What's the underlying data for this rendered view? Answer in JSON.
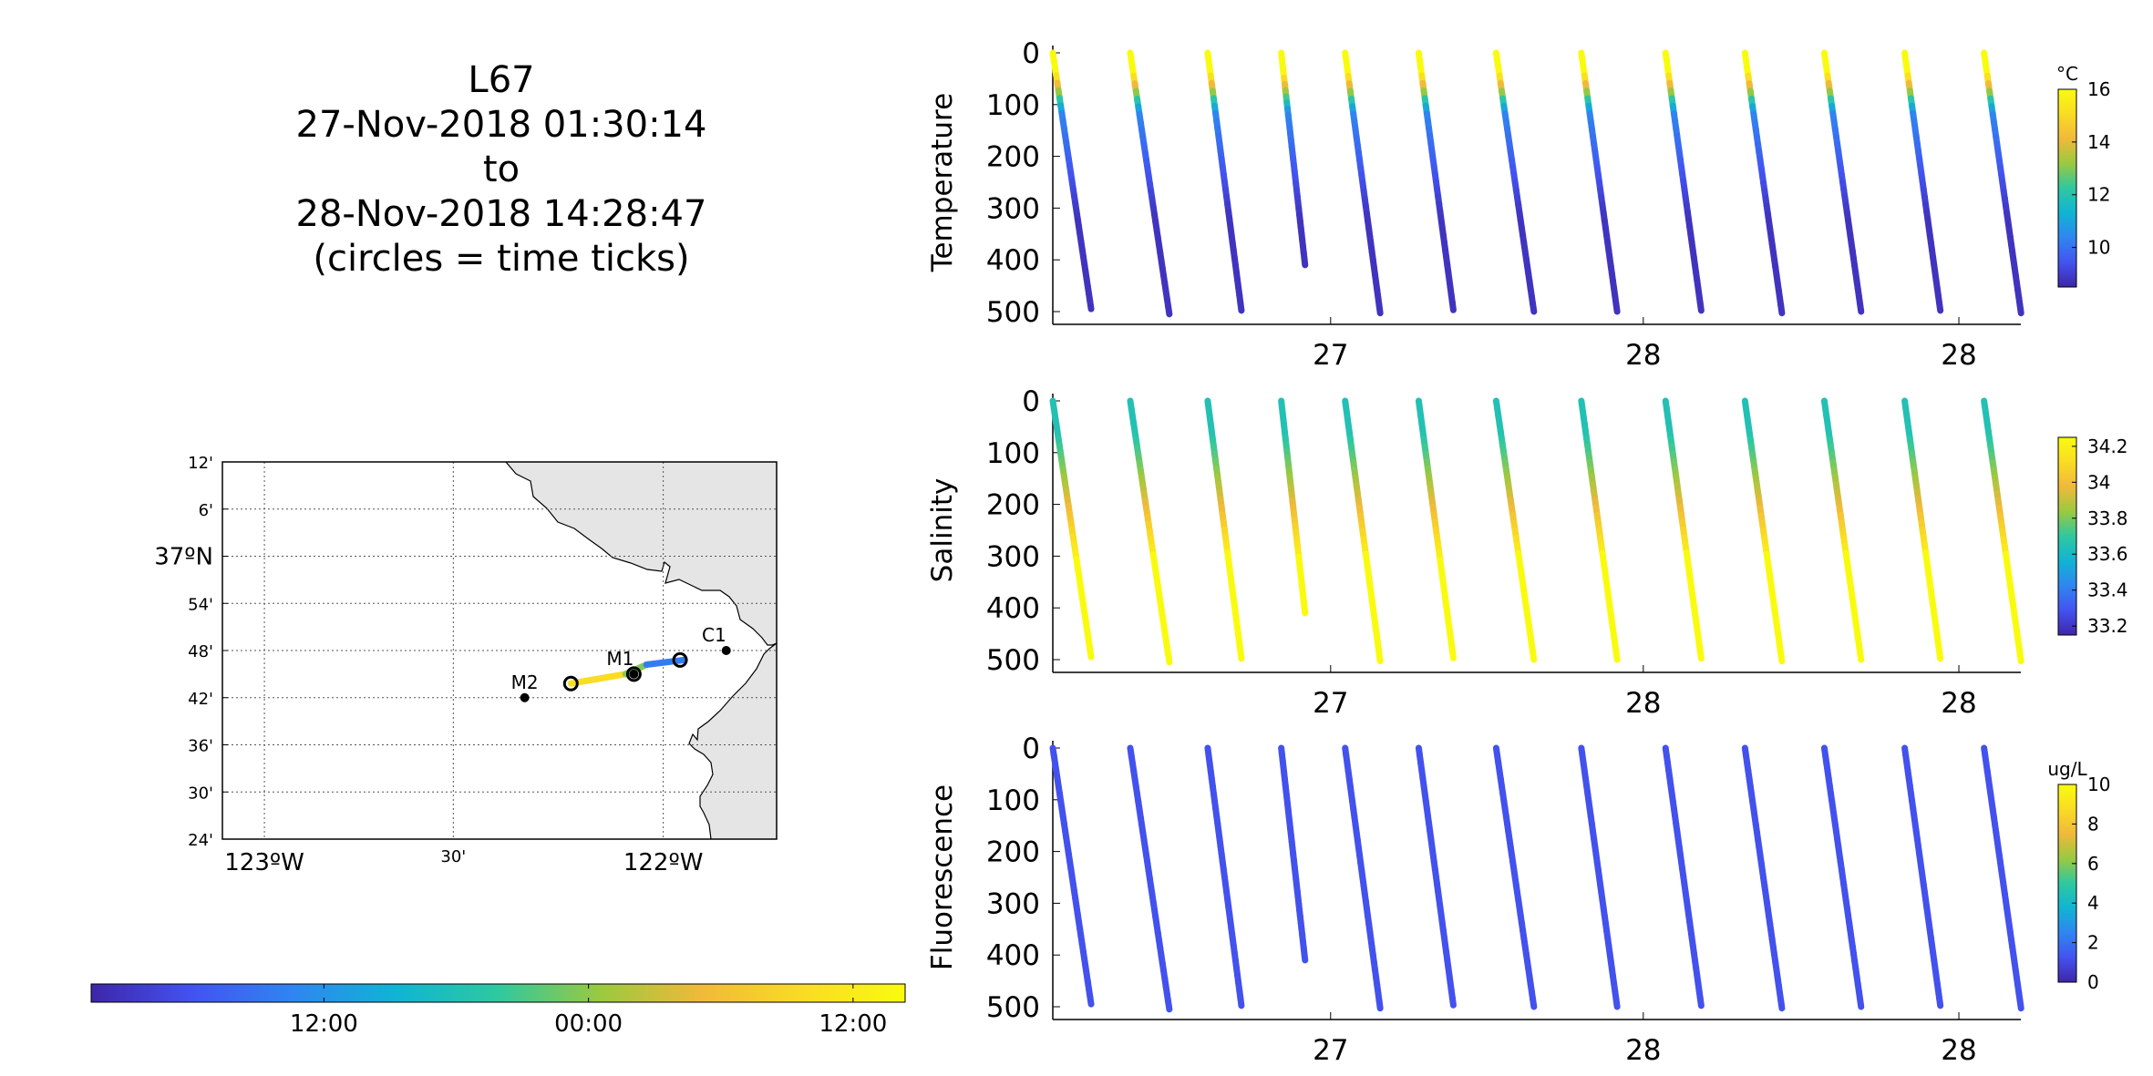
{
  "title": {
    "line1": "L67",
    "line2": "27-Nov-2018 01:30:14",
    "line3": "to",
    "line4": "28-Nov-2018 14:28:47",
    "line5": "(circles = time ticks)"
  },
  "map": {
    "lon_range": [
      -123.05,
      -121.73
    ],
    "lat_range": [
      36.4,
      37.2
    ],
    "lat_ticks": [
      {
        "lat": 37.2,
        "label": "12'"
      },
      {
        "lat": 37.1,
        "label": "6'"
      },
      {
        "lat": 37.0,
        "label": "37°N"
      },
      {
        "lat": 36.9,
        "label": "54'"
      },
      {
        "lat": 36.8,
        "label": "48'"
      },
      {
        "lat": 36.7,
        "label": "42'"
      },
      {
        "lat": 36.6,
        "label": "36'"
      },
      {
        "lat": 36.5,
        "label": "30'"
      },
      {
        "lat": 36.4,
        "label": "24'"
      }
    ],
    "lon_ticks": [
      {
        "lon": -122.95,
        "label": "123°W"
      },
      {
        "lon": -122.5,
        "label": "30'"
      },
      {
        "lon": -122.0,
        "label": "122°W"
      }
    ],
    "stations": [
      {
        "name": "M2",
        "lon": -122.33,
        "lat": 36.7
      },
      {
        "name": "M1",
        "lon": -122.07,
        "lat": 36.75
      },
      {
        "name": "C1",
        "lon": -121.85,
        "lat": 36.8
      }
    ],
    "track": [
      {
        "lon": -122.22,
        "lat": 36.73,
        "t": 1.0
      },
      {
        "lon": -122.09,
        "lat": 36.75,
        "t": 0.75
      },
      {
        "lon": -122.04,
        "lat": 36.77,
        "t": 0.45
      },
      {
        "lon": -121.95,
        "lat": 36.78,
        "t": 0.0
      }
    ],
    "time_tick_circles": [
      {
        "lon": -122.22,
        "lat": 36.73
      },
      {
        "lon": -122.07,
        "lat": 36.75
      },
      {
        "lon": -121.96,
        "lat": 36.78
      }
    ],
    "land_color": "#e5e5e5"
  },
  "time_colorbar": {
    "tick_labels": [
      "12:00",
      "00:00",
      "12:00"
    ],
    "colors": [
      "#3e26a8",
      "#4353f0",
      "#2f86f0",
      "#10b4d3",
      "#2fc8a0",
      "#9ac940",
      "#f0b93a",
      "#f9dc24",
      "#f9fb0e"
    ]
  },
  "chart_data": [
    {
      "type": "scatter",
      "ylabel": "Temperature",
      "y_reversed": true,
      "ylim": [
        0,
        500
      ],
      "yticks": [
        0,
        100,
        200,
        300,
        400,
        500
      ],
      "xticks": [
        "27",
        "28",
        "28"
      ],
      "colorbar": {
        "unit": "°C",
        "range": [
          8.5,
          16
        ],
        "ticks": [
          10,
          12,
          14,
          16
        ]
      },
      "value_profile": "temperature"
    },
    {
      "type": "scatter",
      "ylabel": "Salinity",
      "y_reversed": true,
      "ylim": [
        0,
        500
      ],
      "yticks": [
        0,
        100,
        200,
        300,
        400,
        500
      ],
      "xticks": [
        "27",
        "28",
        "28"
      ],
      "colorbar": {
        "unit": "",
        "range": [
          33.15,
          34.25
        ],
        "ticks": [
          33.2,
          33.4,
          33.6,
          33.8,
          34,
          34.2
        ]
      },
      "value_profile": "salinity"
    },
    {
      "type": "scatter",
      "ylabel": "Fluorescence",
      "y_reversed": true,
      "ylim": [
        0,
        500
      ],
      "yticks": [
        0,
        100,
        200,
        300,
        400,
        500
      ],
      "xticks": [
        "27",
        "28",
        "28"
      ],
      "colorbar": {
        "unit": "ug/L",
        "range": [
          0,
          10
        ],
        "ticks": [
          0,
          2,
          4,
          6,
          8,
          10
        ]
      },
      "value_profile": "fluorescence"
    }
  ],
  "profiles": [
    {
      "start": 0.0,
      "end": 0.04,
      "max_depth": 495
    },
    {
      "start": 0.08,
      "end": 0.12,
      "max_depth": 505
    },
    {
      "start": 0.16,
      "end": 0.195,
      "max_depth": 498
    },
    {
      "start": 0.236,
      "end": 0.266,
      "max_depth": 410
    },
    {
      "start": 0.302,
      "end": 0.338,
      "max_depth": 503
    },
    {
      "start": 0.378,
      "end": 0.414,
      "max_depth": 497
    },
    {
      "start": 0.458,
      "end": 0.497,
      "max_depth": 500
    },
    {
      "start": 0.546,
      "end": 0.583,
      "max_depth": 500
    },
    {
      "start": 0.633,
      "end": 0.67,
      "max_depth": 498
    },
    {
      "start": 0.715,
      "end": 0.753,
      "max_depth": 503
    },
    {
      "start": 0.797,
      "end": 0.835,
      "max_depth": 500
    },
    {
      "start": 0.88,
      "end": 0.917,
      "max_depth": 498
    },
    {
      "start": 0.962,
      "end": 1.0,
      "max_depth": 503
    }
  ]
}
